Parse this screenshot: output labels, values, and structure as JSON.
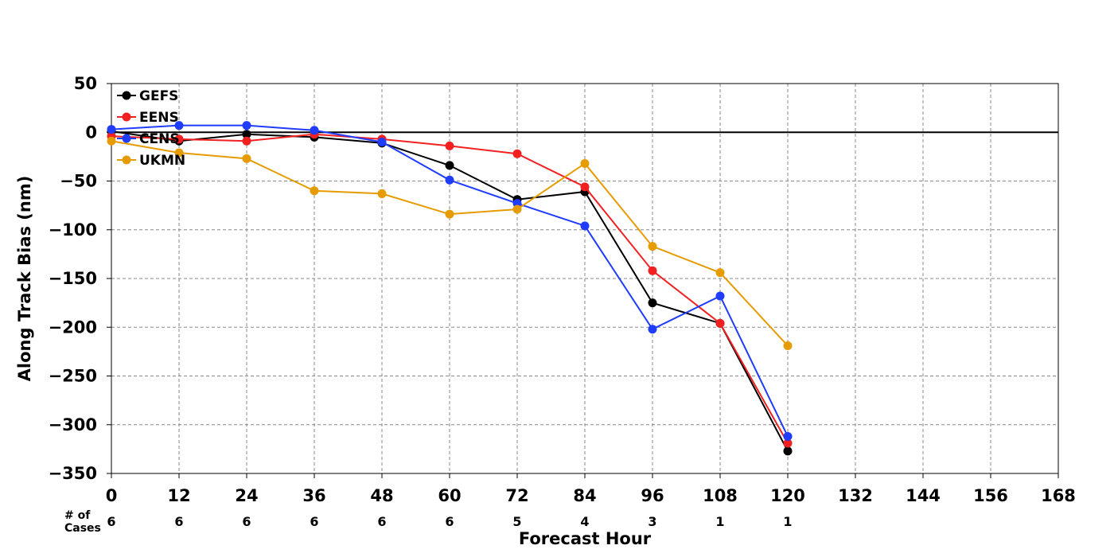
{
  "chart_data": {
    "type": "line",
    "title": "",
    "xlabel": "Forecast Hour",
    "ylabel": "Along Track Bias (nm)",
    "xlim": [
      0,
      168
    ],
    "ylim": [
      -350,
      50
    ],
    "x_ticks": [
      0,
      12,
      24,
      36,
      48,
      60,
      72,
      84,
      96,
      108,
      120,
      132,
      144,
      156,
      168
    ],
    "y_ticks": [
      50,
      0,
      -50,
      -100,
      -150,
      -200,
      -250,
      -300,
      -350
    ],
    "grid": true,
    "zero_line": true,
    "legend_position": "top-left",
    "series": [
      {
        "name": "GEFS",
        "color": "#000000",
        "x": [
          0,
          12,
          24,
          36,
          48,
          60,
          72,
          84,
          96,
          108,
          120
        ],
        "values": [
          1,
          -9,
          -2,
          -5,
          -11,
          -34,
          -69,
          -61,
          -175,
          -196,
          -327
        ]
      },
      {
        "name": "EENS",
        "color": "#f22020",
        "x": [
          0,
          12,
          24,
          36,
          48,
          60,
          72,
          84,
          96,
          108,
          120
        ],
        "values": [
          -4,
          -7,
          -9,
          -2,
          -7,
          -14,
          -22,
          -56,
          -142,
          -196,
          -319
        ]
      },
      {
        "name": "CENS",
        "color": "#1f3cff",
        "x": [
          0,
          12,
          24,
          36,
          48,
          60,
          72,
          84,
          96,
          108,
          120
        ],
        "values": [
          3,
          7,
          7,
          2,
          -10,
          -49,
          -73,
          -96,
          -202,
          -168,
          -312
        ]
      },
      {
        "name": "UKMN",
        "color": "#e69b00",
        "x": [
          0,
          12,
          24,
          36,
          48,
          60,
          72,
          84,
          96,
          108,
          120
        ],
        "values": [
          -9,
          -21,
          -27,
          -60,
          -63,
          -84,
          -79,
          -32,
          -117,
          -144,
          -219
        ]
      }
    ],
    "cases": {
      "label_line1": "# of",
      "label_line2": "Cases",
      "x": [
        0,
        12,
        24,
        36,
        48,
        60,
        72,
        84,
        96,
        108,
        120
      ],
      "values": [
        "6",
        "6",
        "6",
        "6",
        "6",
        "6",
        "5",
        "4",
        "3",
        "1",
        "1"
      ]
    }
  }
}
